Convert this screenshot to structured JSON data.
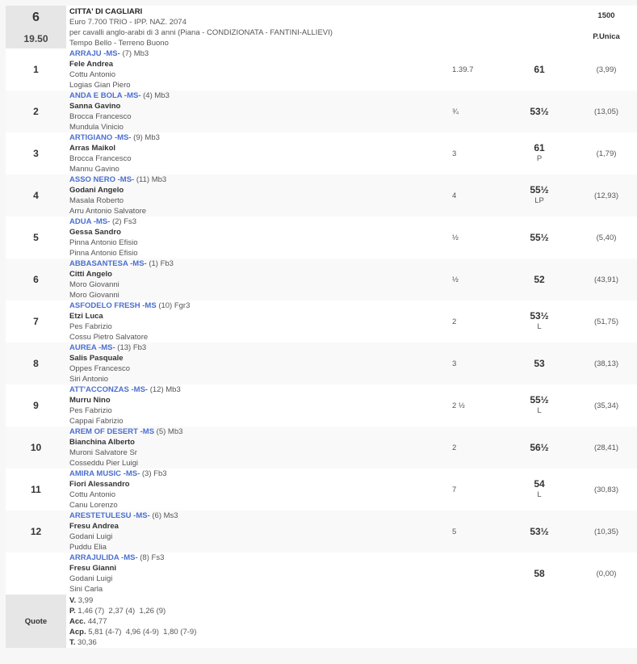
{
  "race": {
    "number": "6",
    "time": "19.50",
    "name": "CITTA' DI CAGLIARI",
    "prize": "Euro 7.700 TRIO - IPP. NAZ. 2074",
    "conditions": "per cavalli anglo-arabi di 3 anni (Piana -  CONDIZIONATA  - FANTINI-ALLIEVI)",
    "weather": "Tempo Bello - Terreno Buono",
    "distance": "1500",
    "start": "P.Unica"
  },
  "results": [
    {
      "pos": "1",
      "horse": "ARRAJU -MS-",
      "extra": "(7) Mb3",
      "jockey": "Fele Andrea",
      "trainer": "Cottu Antonio",
      "owner": "Logias Gian Piero",
      "gap": "1.39.7",
      "weight": "61",
      "note": "",
      "odds": "(3,99)"
    },
    {
      "pos": "2",
      "horse": "ANDA E BOLA -MS-",
      "extra": "(4) Mb3",
      "jockey": "Sanna Gavino",
      "trainer": "Brocca Francesco",
      "owner": "Mundula Vinicio",
      "gap": "¾",
      "weight": "53½",
      "note": "",
      "odds": "(13,05)"
    },
    {
      "pos": "3",
      "horse": "ARTIGIANO -MS-",
      "extra": "(9) Mb3",
      "jockey": "Arras Maikol",
      "trainer": "Brocca Francesco",
      "owner": "Mannu Gavino",
      "gap": "3",
      "weight": "61",
      "note": "P",
      "odds": "(1,79)"
    },
    {
      "pos": "4",
      "horse": "ASSO NERO -MS-",
      "extra": "(11) Mb3",
      "jockey": "Godani Angelo",
      "trainer": "Masala Roberto",
      "owner": "Arru Antonio Salvatore",
      "gap": "4",
      "weight": "55½",
      "note": "LP",
      "odds": "(12,93)"
    },
    {
      "pos": "5",
      "horse": "ADUA -MS-",
      "extra": "(2) Fs3",
      "jockey": "Gessa Sandro",
      "trainer": "Pinna Antonio Efisio",
      "owner": "Pinna Antonio Efisio",
      "gap": "½",
      "weight": "55½",
      "note": "",
      "odds": "(5,40)"
    },
    {
      "pos": "6",
      "horse": "ABBASANTESA -MS-",
      "extra": "(1) Fb3",
      "jockey": "Citti Angelo",
      "trainer": "Moro Giovanni",
      "owner": "Moro Giovanni",
      "gap": "½",
      "weight": "52",
      "note": "",
      "odds": "(43,91)"
    },
    {
      "pos": "7",
      "horse": "ASFODELO FRESH -MS",
      "extra": "(10) Fgr3",
      "jockey": "Etzi Luca",
      "trainer": "Pes Fabrizio",
      "owner": "Cossu Pietro Salvatore",
      "gap": "2",
      "weight": "53½",
      "note": "L",
      "odds": "(51,75)"
    },
    {
      "pos": "8",
      "horse": "AUREA -MS-",
      "extra": "(13) Fb3",
      "jockey": "Salis Pasquale",
      "trainer": "Oppes Francesco",
      "owner": "Siri Antonio",
      "gap": "3",
      "weight": "53",
      "note": "",
      "odds": "(38,13)"
    },
    {
      "pos": "9",
      "horse": "ATT'ACCONZAS -MS-",
      "extra": "(12) Mb3",
      "jockey": "Murru Nino",
      "trainer": "Pes Fabrizio",
      "owner": "Cappai Fabrizio",
      "gap": "2 ½",
      "weight": "55½",
      "note": "L",
      "odds": "(35,34)"
    },
    {
      "pos": "10",
      "horse": "AREM OF DESERT -MS",
      "extra": "(5) Mb3",
      "jockey": "Bianchina Alberto",
      "trainer": "Muroni Salvatore Sr",
      "owner": "Cosseddu Pier Luigi",
      "gap": "2",
      "weight": "56½",
      "note": "",
      "odds": "(28,41)"
    },
    {
      "pos": "11",
      "horse": "AMIRA MUSIC -MS-",
      "extra": "(3) Fb3",
      "jockey": "Fiori Alessandro",
      "trainer": "Cottu Antonio",
      "owner": "Canu Lorenzo",
      "gap": "7",
      "weight": "54",
      "note": "L",
      "odds": "(30,83)"
    },
    {
      "pos": "12",
      "horse": "ARESTETULESU -MS-",
      "extra": "(6) Ms3",
      "jockey": "Fresu Andrea",
      "trainer": "Godani Luigi",
      "owner": "Puddu Elia",
      "gap": "5",
      "weight": "53½",
      "note": "",
      "odds": "(10,35)"
    },
    {
      "pos": "",
      "horse": "ARRAJULIDA -MS-",
      "extra": "(8) Fs3",
      "jockey": "Fresu Gianni",
      "trainer": "Godani Luigi",
      "owner": "Sini Carla",
      "gap": "",
      "weight": "58",
      "note": "",
      "odds": "(0,00)"
    }
  ],
  "quote": {
    "label": "Quote",
    "lines": [
      {
        "label": "V.",
        "value": " 3,99"
      },
      {
        "label": "P.",
        "value": " 1,46 (7)  2,37 (4)  1,26 (9)"
      },
      {
        "label": "Acc.",
        "value": " 44,77"
      },
      {
        "label": "Acp.",
        "value": " 5,81 (4-7)  4,96 (4-9)  1,80 (7-9)"
      },
      {
        "label": "T.",
        "value": " 30,36"
      }
    ]
  },
  "colors": {
    "horse_link": "#4a6fd0",
    "cell_grey": "#e6e6e6",
    "row_alt": "#f9f9f9"
  }
}
